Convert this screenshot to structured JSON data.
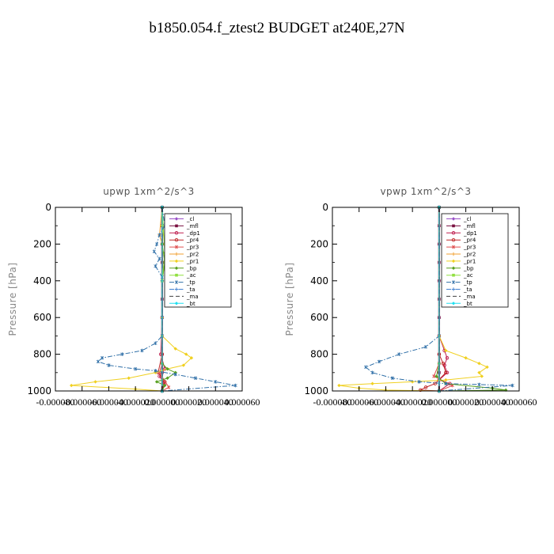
{
  "title": "b1850.054.f_ztest2  BUDGET at240E,27N",
  "chart_data": [
    {
      "type": "line",
      "title": "upwp   1xm^2/s^3",
      "ylabel": "Pressure [hPa]",
      "xlim": [
        -8e-05,
        6e-05
      ],
      "ylim": [
        1000,
        0
      ],
      "x_ticks": [
        "-0.000080",
        "-0.000060",
        "-0.000040",
        "-0.000020",
        "0.000000",
        "0.000020",
        "0.000040",
        "0.000060"
      ],
      "y_ticks": [
        "0",
        "200",
        "400",
        "600",
        "800",
        "1000"
      ],
      "y_tick_values": [
        0,
        200,
        400,
        600,
        800,
        1000
      ],
      "legend_position": "top-right",
      "series": [
        {
          "name": "_cl",
          "color": "#9a50c8",
          "style": "solid",
          "marker": "diamond",
          "points": [
            [
              0,
              0
            ],
            [
              0,
              200
            ],
            [
              0,
              400
            ],
            [
              0,
              600
            ],
            [
              0,
              800
            ],
            [
              0,
              1000
            ]
          ]
        },
        {
          "name": "_mfl",
          "color": "#7a1040",
          "style": "solid",
          "marker": "square",
          "points": [
            [
              0,
              0
            ],
            [
              0,
              100
            ],
            [
              0,
              200
            ],
            [
              0,
              300
            ],
            [
              0,
              400
            ],
            [
              0,
              500
            ],
            [
              0,
              600
            ],
            [
              0,
              700
            ],
            [
              0,
              800
            ],
            [
              0,
              900
            ],
            [
              0,
              1000
            ]
          ]
        },
        {
          "name": "_dp1",
          "color": "#c02050",
          "style": "solid",
          "marker": "circle",
          "points": [
            [
              0,
              0
            ],
            [
              0,
              600
            ],
            [
              -1e-06,
              800
            ],
            [
              2e-06,
              880
            ],
            [
              -2e-06,
              920
            ],
            [
              2e-06,
              960
            ],
            [
              0,
              1000
            ]
          ]
        },
        {
          "name": "_pr4",
          "color": "#c02828",
          "style": "solid",
          "marker": "circle",
          "points": [
            [
              0,
              0
            ],
            [
              0,
              800
            ],
            [
              -3e-06,
              900
            ],
            [
              2e-06,
              950
            ],
            [
              0,
              1000
            ]
          ]
        },
        {
          "name": "_pr3",
          "color": "#e05050",
          "style": "solid",
          "marker": "star",
          "points": [
            [
              0,
              0
            ],
            [
              0,
              850
            ],
            [
              -2e-06,
              900
            ],
            [
              5e-06,
              980
            ],
            [
              0,
              1000
            ]
          ]
        },
        {
          "name": "_pr2",
          "color": "#f0a030",
          "style": "solid",
          "marker": "plus",
          "points": [
            [
              0,
              0
            ],
            [
              -2e-06,
              150
            ],
            [
              0,
              200
            ],
            [
              0,
              1000
            ]
          ]
        },
        {
          "name": "_pr1",
          "color": "#f0d020",
          "style": "solid",
          "marker": "diamond",
          "points": [
            [
              0,
              0
            ],
            [
              0,
              100
            ],
            [
              2e-06,
              200
            ],
            [
              2e-06,
              300
            ],
            [
              0,
              400
            ],
            [
              0,
              600
            ],
            [
              0,
              700
            ],
            [
              1e-05,
              770
            ],
            [
              1.8e-05,
              800
            ],
            [
              2.2e-05,
              820
            ],
            [
              1.6e-05,
              860
            ],
            [
              4e-06,
              880
            ],
            [
              -5e-06,
              900
            ],
            [
              -2.5e-05,
              930
            ],
            [
              -5e-05,
              950
            ],
            [
              -6.8e-05,
              970
            ],
            [
              -2e-05,
              990
            ],
            [
              0,
              1000
            ]
          ]
        },
        {
          "name": "_bp",
          "color": "#58a020",
          "style": "solid",
          "marker": "diamond",
          "points": [
            [
              0,
              0
            ],
            [
              0,
              200
            ],
            [
              2e-06,
              300
            ],
            [
              0,
              400
            ],
            [
              0,
              850
            ],
            [
              4e-06,
              880
            ],
            [
              1e-05,
              900
            ],
            [
              4e-06,
              930
            ],
            [
              -4e-06,
              950
            ],
            [
              2e-06,
              970
            ],
            [
              0,
              1000
            ]
          ]
        },
        {
          "name": "_ac",
          "color": "#90e040",
          "style": "solid",
          "marker": "square",
          "points": [
            [
              0,
              0
            ],
            [
              2e-06,
              250
            ],
            [
              0,
              400
            ],
            [
              0,
              1000
            ]
          ]
        },
        {
          "name": "_tp",
          "color": "#3070a8",
          "style": "dashdot",
          "marker": "star",
          "points": [
            [
              0,
              0
            ],
            [
              2e-06,
              100
            ],
            [
              -2e-06,
              150
            ],
            [
              -4e-06,
              200
            ],
            [
              -6e-06,
              240
            ],
            [
              -2e-06,
              280
            ],
            [
              -5e-06,
              320
            ],
            [
              0,
              380
            ],
            [
              0,
              600
            ],
            [
              0,
              700
            ],
            [
              -5e-06,
              740
            ],
            [
              -1.5e-05,
              780
            ],
            [
              -3e-05,
              800
            ],
            [
              -4.5e-05,
              820
            ],
            [
              -4.8e-05,
              840
            ],
            [
              -4e-05,
              860
            ],
            [
              -2e-05,
              880
            ],
            [
              -5e-06,
              890
            ],
            [
              1e-05,
              910
            ],
            [
              2.5e-05,
              930
            ],
            [
              4e-05,
              950
            ],
            [
              5.5e-05,
              970
            ],
            [
              0,
              1000
            ]
          ]
        },
        {
          "name": "_ta",
          "color": "#4080d0",
          "style": "dashdot",
          "marker": "plus",
          "points": [
            [
              0,
              0
            ],
            [
              0,
              400
            ],
            [
              0,
              1000
            ]
          ]
        },
        {
          "name": "_ma",
          "color": "#404040",
          "style": "dashed",
          "marker": "none",
          "points": [
            [
              0,
              0
            ],
            [
              0,
              1000
            ]
          ]
        },
        {
          "name": "_bt",
          "color": "#20e0f0",
          "style": "solid",
          "marker": "diamond",
          "points": [
            [
              0,
              0
            ],
            [
              0,
              1000
            ]
          ]
        }
      ]
    },
    {
      "type": "line",
      "title": "vpwp   1xm^2/s^3",
      "ylabel": "Pressure [hPa]",
      "xlim": [
        -8e-05,
        6e-05
      ],
      "ylim": [
        1000,
        0
      ],
      "x_ticks": [
        "-0.000080",
        "-0.000060",
        "-0.000040",
        "-0.000020",
        "0.000000",
        "0.000020",
        "0.000040",
        "0.000060"
      ],
      "y_ticks": [
        "0",
        "200",
        "400",
        "600",
        "800",
        "1000"
      ],
      "y_tick_values": [
        0,
        200,
        400,
        600,
        800,
        1000
      ],
      "legend_position": "top-right",
      "series": [
        {
          "name": "_cl",
          "color": "#9a50c8",
          "style": "solid",
          "marker": "diamond",
          "points": [
            [
              0,
              0
            ],
            [
              0,
              200
            ],
            [
              0,
              400
            ],
            [
              0,
              600
            ],
            [
              0,
              800
            ],
            [
              0,
              1000
            ]
          ]
        },
        {
          "name": "_mfl",
          "color": "#7a1040",
          "style": "solid",
          "marker": "square",
          "points": [
            [
              0,
              0
            ],
            [
              0,
              100
            ],
            [
              0,
              200
            ],
            [
              0,
              300
            ],
            [
              0,
              400
            ],
            [
              0,
              500
            ],
            [
              0,
              600
            ],
            [
              0,
              700
            ],
            [
              0,
              800
            ],
            [
              0,
              900
            ],
            [
              0,
              1000
            ]
          ]
        },
        {
          "name": "_dp1",
          "color": "#c02050",
          "style": "solid",
          "marker": "circle",
          "points": [
            [
              0,
              0
            ],
            [
              0,
              700
            ],
            [
              4e-06,
              780
            ],
            [
              6e-06,
              820
            ],
            [
              4e-06,
              860
            ],
            [
              6e-06,
              900
            ],
            [
              0,
              940
            ],
            [
              8e-06,
              960
            ],
            [
              0,
              1000
            ]
          ]
        },
        {
          "name": "_pr4",
          "color": "#c02828",
          "style": "solid",
          "marker": "circle",
          "points": [
            [
              0,
              0
            ],
            [
              0,
              800
            ],
            [
              3e-06,
              850
            ],
            [
              5e-06,
              900
            ],
            [
              -3e-06,
              960
            ],
            [
              -1e-05,
              980
            ],
            [
              -1.4e-05,
              995
            ],
            [
              0,
              1000
            ]
          ]
        },
        {
          "name": "_pr3",
          "color": "#e05050",
          "style": "solid",
          "marker": "star",
          "points": [
            [
              0,
              0
            ],
            [
              0,
              850
            ],
            [
              -4e-06,
              920
            ],
            [
              1e-05,
              970
            ],
            [
              0,
              1000
            ]
          ]
        },
        {
          "name": "_pr2",
          "color": "#f0a030",
          "style": "solid",
          "marker": "plus",
          "points": [
            [
              0,
              0
            ],
            [
              0,
              1000
            ]
          ]
        },
        {
          "name": "_pr1",
          "color": "#f0d020",
          "style": "solid",
          "marker": "diamond",
          "points": [
            [
              0,
              0
            ],
            [
              0,
              700
            ],
            [
              5e-06,
              780
            ],
            [
              2e-05,
              820
            ],
            [
              3e-05,
              850
            ],
            [
              3.6e-05,
              870
            ],
            [
              3e-05,
              900
            ],
            [
              3.2e-05,
              920
            ],
            [
              5e-06,
              940
            ],
            [
              -2e-05,
              950
            ],
            [
              -5e-05,
              960
            ],
            [
              -7.5e-05,
              970
            ],
            [
              -6e-05,
              985
            ],
            [
              -4e-05,
              995
            ],
            [
              0,
              1000
            ]
          ]
        },
        {
          "name": "_bp",
          "color": "#58a020",
          "style": "solid",
          "marker": "diamond",
          "points": [
            [
              0,
              0
            ],
            [
              0,
              850
            ],
            [
              -2e-06,
              920
            ],
            [
              5e-06,
              960
            ],
            [
              4e-05,
              985
            ],
            [
              5e-05,
              995
            ],
            [
              0,
              1000
            ]
          ]
        },
        {
          "name": "_ac",
          "color": "#90e040",
          "style": "solid",
          "marker": "square",
          "points": [
            [
              0,
              0
            ],
            [
              0,
              1000
            ]
          ]
        },
        {
          "name": "_tp",
          "color": "#3070a8",
          "style": "dashdot",
          "marker": "star",
          "points": [
            [
              0,
              0
            ],
            [
              0,
              700
            ],
            [
              -1e-05,
              760
            ],
            [
              -3e-05,
              800
            ],
            [
              -4.5e-05,
              840
            ],
            [
              -5.5e-05,
              870
            ],
            [
              -5e-05,
              900
            ],
            [
              -3.5e-05,
              930
            ],
            [
              -1.5e-05,
              950
            ],
            [
              5e-06,
              960
            ],
            [
              3e-05,
              965
            ],
            [
              5.5e-05,
              970
            ],
            [
              0,
              1000
            ]
          ]
        },
        {
          "name": "_ta",
          "color": "#4080d0",
          "style": "dashdot",
          "marker": "plus",
          "points": [
            [
              0,
              0
            ],
            [
              0,
              1000
            ]
          ]
        },
        {
          "name": "_ma",
          "color": "#404040",
          "style": "dashed",
          "marker": "none",
          "points": [
            [
              0,
              0
            ],
            [
              0,
              1000
            ]
          ]
        },
        {
          "name": "_bt",
          "color": "#20e0f0",
          "style": "solid",
          "marker": "diamond",
          "points": [
            [
              0,
              0
            ],
            [
              0,
              1000
            ]
          ]
        }
      ]
    }
  ]
}
